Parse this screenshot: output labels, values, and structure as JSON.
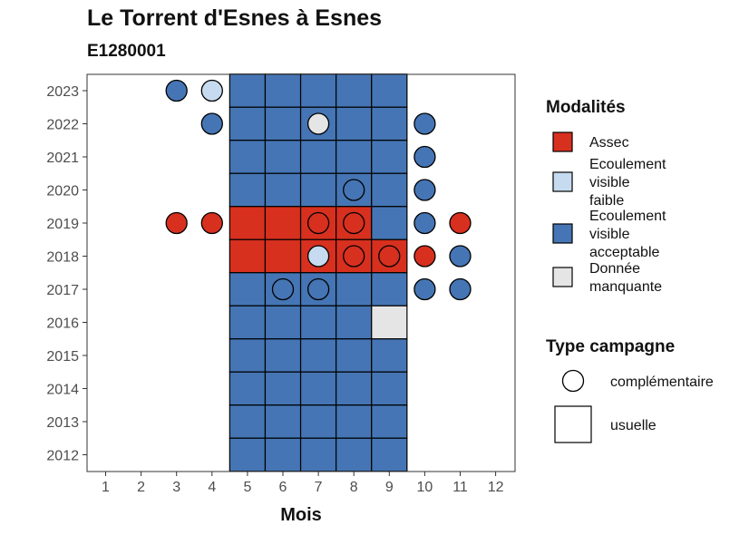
{
  "chart_data": {
    "type": "heatmap",
    "title": "Le Torrent d'Esnes à Esnes",
    "subtitle": "E1280001",
    "xlabel": "Mois",
    "ylabel": "",
    "x_ticks": [
      "1",
      "2",
      "3",
      "4",
      "5",
      "6",
      "7",
      "8",
      "9",
      "10",
      "11",
      "12"
    ],
    "y_ticks": [
      "2012",
      "2013",
      "2014",
      "2015",
      "2016",
      "2017",
      "2018",
      "2019",
      "2020",
      "2021",
      "2022",
      "2023"
    ],
    "colors": {
      "Assec": "#d7301f",
      "Ecoulement visible faible": "#c6dbef",
      "Ecoulement visible acceptable": "#4575b4",
      "Donnée manquante": "#e5e5e5"
    },
    "legend": {
      "position": "right",
      "modalites_title": "Modalités",
      "modalites": [
        {
          "key": "Assec",
          "lines": [
            "Assec"
          ]
        },
        {
          "key": "Ecoulement visible faible",
          "lines": [
            "Ecoulement",
            "visible",
            "faible"
          ]
        },
        {
          "key": "Ecoulement visible acceptable",
          "lines": [
            "Ecoulement",
            "visible",
            "acceptable"
          ]
        },
        {
          "key": "Donnée manquante",
          "lines": [
            "Donnée",
            "manquante"
          ]
        }
      ],
      "type_title": "Type campagne",
      "types": [
        {
          "key": "complementaire",
          "label": "complémentaire",
          "shape": "circle"
        },
        {
          "key": "usuelle",
          "label": "usuelle",
          "shape": "square"
        }
      ]
    },
    "usuelle": [
      {
        "year": 2023,
        "months": {
          "5": "Ecoulement visible acceptable",
          "6": "Ecoulement visible acceptable",
          "7": "Ecoulement visible acceptable",
          "8": "Ecoulement visible acceptable",
          "9": "Ecoulement visible acceptable"
        }
      },
      {
        "year": 2022,
        "months": {
          "5": "Ecoulement visible acceptable",
          "6": "Ecoulement visible acceptable",
          "7": "Ecoulement visible acceptable",
          "8": "Ecoulement visible acceptable",
          "9": "Ecoulement visible acceptable"
        }
      },
      {
        "year": 2021,
        "months": {
          "5": "Ecoulement visible acceptable",
          "6": "Ecoulement visible acceptable",
          "7": "Ecoulement visible acceptable",
          "8": "Ecoulement visible acceptable",
          "9": "Ecoulement visible acceptable"
        }
      },
      {
        "year": 2020,
        "months": {
          "5": "Ecoulement visible acceptable",
          "6": "Ecoulement visible acceptable",
          "7": "Ecoulement visible acceptable",
          "8": "Ecoulement visible acceptable",
          "9": "Ecoulement visible acceptable"
        }
      },
      {
        "year": 2019,
        "months": {
          "5": "Assec",
          "6": "Assec",
          "7": "Assec",
          "8": "Assec",
          "9": "Ecoulement visible acceptable"
        }
      },
      {
        "year": 2018,
        "months": {
          "5": "Assec",
          "6": "Assec",
          "7": "Assec",
          "8": "Assec",
          "9": "Assec"
        }
      },
      {
        "year": 2017,
        "months": {
          "5": "Ecoulement visible acceptable",
          "6": "Ecoulement visible acceptable",
          "7": "Ecoulement visible acceptable",
          "8": "Ecoulement visible acceptable",
          "9": "Ecoulement visible acceptable"
        }
      },
      {
        "year": 2016,
        "months": {
          "5": "Ecoulement visible acceptable",
          "6": "Ecoulement visible acceptable",
          "7": "Ecoulement visible acceptable",
          "8": "Ecoulement visible acceptable",
          "9": "Donnée manquante"
        }
      },
      {
        "year": 2015,
        "months": {
          "5": "Ecoulement visible acceptable",
          "6": "Ecoulement visible acceptable",
          "7": "Ecoulement visible acceptable",
          "8": "Ecoulement visible acceptable",
          "9": "Ecoulement visible acceptable"
        }
      },
      {
        "year": 2014,
        "months": {
          "5": "Ecoulement visible acceptable",
          "6": "Ecoulement visible acceptable",
          "7": "Ecoulement visible acceptable",
          "8": "Ecoulement visible acceptable",
          "9": "Ecoulement visible acceptable"
        }
      },
      {
        "year": 2013,
        "months": {
          "5": "Ecoulement visible acceptable",
          "6": "Ecoulement visible acceptable",
          "7": "Ecoulement visible acceptable",
          "8": "Ecoulement visible acceptable",
          "9": "Ecoulement visible acceptable"
        }
      },
      {
        "year": 2012,
        "months": {
          "5": "Ecoulement visible acceptable",
          "6": "Ecoulement visible acceptable",
          "7": "Ecoulement visible acceptable",
          "8": "Ecoulement visible acceptable",
          "9": "Ecoulement visible acceptable"
        }
      }
    ],
    "complementaire": [
      {
        "year": 2023,
        "month": 3,
        "value": "Ecoulement visible acceptable"
      },
      {
        "year": 2023,
        "month": 4,
        "value": "Ecoulement visible faible"
      },
      {
        "year": 2022,
        "month": 4,
        "value": "Ecoulement visible acceptable"
      },
      {
        "year": 2022,
        "month": 7,
        "value": "Donnée manquante"
      },
      {
        "year": 2022,
        "month": 10,
        "value": "Ecoulement visible acceptable"
      },
      {
        "year": 2021,
        "month": 10,
        "value": "Ecoulement visible acceptable"
      },
      {
        "year": 2020,
        "month": 8,
        "value": "Ecoulement visible acceptable"
      },
      {
        "year": 2020,
        "month": 10,
        "value": "Ecoulement visible acceptable"
      },
      {
        "year": 2019,
        "month": 3,
        "value": "Assec"
      },
      {
        "year": 2019,
        "month": 4,
        "value": "Assec"
      },
      {
        "year": 2019,
        "month": 7,
        "value": "Assec"
      },
      {
        "year": 2019,
        "month": 8,
        "value": "Assec"
      },
      {
        "year": 2019,
        "month": 10,
        "value": "Ecoulement visible acceptable"
      },
      {
        "year": 2019,
        "month": 11,
        "value": "Assec"
      },
      {
        "year": 2018,
        "month": 7,
        "value": "Ecoulement visible faible"
      },
      {
        "year": 2018,
        "month": 8,
        "value": "Assec"
      },
      {
        "year": 2018,
        "month": 9,
        "value": "Assec"
      },
      {
        "year": 2018,
        "month": 10,
        "value": "Assec"
      },
      {
        "year": 2018,
        "month": 11,
        "value": "Ecoulement visible acceptable"
      },
      {
        "year": 2017,
        "month": 6,
        "value": "Ecoulement visible acceptable"
      },
      {
        "year": 2017,
        "month": 7,
        "value": "Ecoulement visible acceptable"
      },
      {
        "year": 2017,
        "month": 10,
        "value": "Ecoulement visible acceptable"
      },
      {
        "year": 2017,
        "month": 11,
        "value": "Ecoulement visible acceptable"
      }
    ]
  }
}
